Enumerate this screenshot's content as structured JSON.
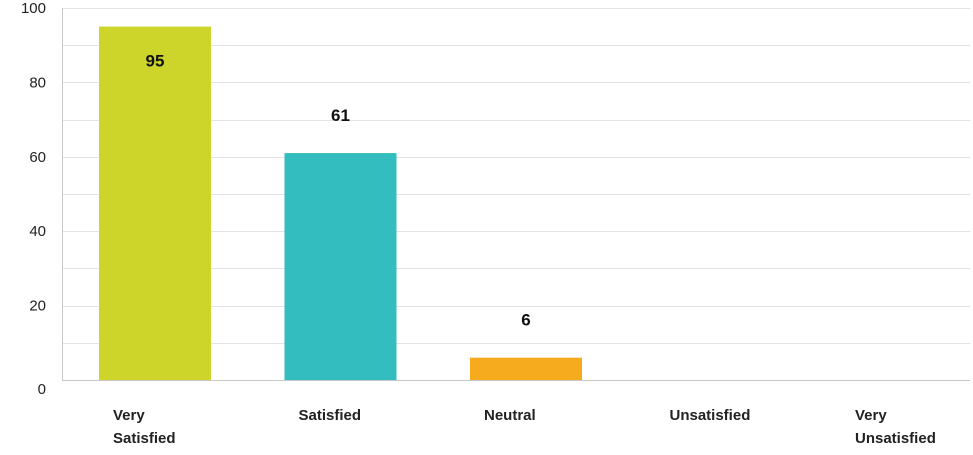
{
  "chart_data": {
    "type": "bar",
    "title": "",
    "xlabel": "",
    "ylabel": "",
    "ylim": [
      0,
      100
    ],
    "yticks": [
      0,
      20,
      40,
      60,
      80,
      100
    ],
    "grid": true,
    "categories": [
      [
        "Very",
        "Satisfied"
      ],
      [
        "Satisfied"
      ],
      [
        "Neutral"
      ],
      [
        "Unsatisfied"
      ],
      [
        "Very",
        "Unsatisfied"
      ]
    ],
    "values": [
      95,
      61,
      6,
      0,
      0
    ],
    "data_labels": [
      "95",
      "61",
      "6",
      "",
      ""
    ],
    "colors": [
      "#cdd42a",
      "#33bdbf",
      "#f6ab1e",
      "#999999",
      "#999999"
    ],
    "grid_color": "#e3e3e3",
    "axis_color": "#c8c8c8"
  }
}
